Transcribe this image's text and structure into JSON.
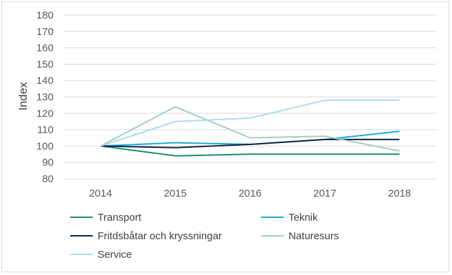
{
  "chart_data": {
    "type": "line",
    "xlabel": "",
    "ylabel": "Index",
    "categories": [
      "2014",
      "2015",
      "2016",
      "2017",
      "2018"
    ],
    "ylim": [
      80,
      180
    ],
    "yticks": [
      80,
      90,
      100,
      110,
      120,
      130,
      140,
      150,
      160,
      170,
      180
    ],
    "grid": true,
    "legend_position": "bottom",
    "series": [
      {
        "name": "Transport",
        "color": "#1a8a6e",
        "values": [
          100,
          94,
          95,
          95,
          95
        ]
      },
      {
        "name": "Teknik",
        "color": "#1aa7d9",
        "values": [
          100,
          102,
          101,
          104,
          109
        ]
      },
      {
        "name": "Fritdsbåtar och kryssningar",
        "color": "#0d2240",
        "values": [
          100,
          99,
          101,
          104,
          104
        ]
      },
      {
        "name": "Naturesurs",
        "color": "#9fd0b8",
        "values": [
          100,
          124,
          105,
          106,
          97
        ]
      },
      {
        "name": "Service",
        "color": "#a9dcef",
        "values": [
          100,
          115,
          117,
          128,
          128
        ]
      }
    ]
  }
}
